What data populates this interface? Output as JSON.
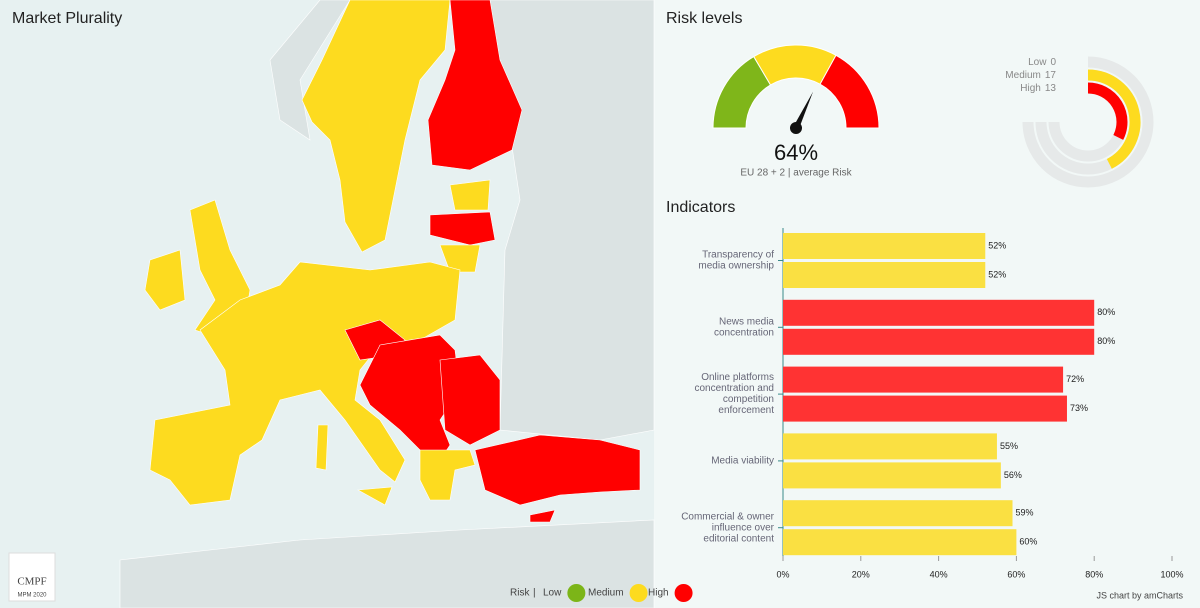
{
  "chart_data": [
    {
      "type": "map",
      "title": "Market Plurality",
      "legend_title": "Risk",
      "legend_separator": "|",
      "legend": [
        {
          "name": "Low",
          "color": "#7cb518"
        },
        {
          "name": "Medium",
          "color": "#fddb1f"
        },
        {
          "name": "High",
          "color": "#ff0000"
        }
      ],
      "logo": {
        "title": "CMPF",
        "subtitle": "MPM 2020"
      }
    },
    {
      "type": "gauge",
      "title": "Risk levels",
      "value": 64,
      "value_label": "64%",
      "subtitle": "EU 28 + 2 | average Risk",
      "ylim": [
        0,
        100
      ],
      "bands": [
        {
          "from": 0,
          "to": 33,
          "color": "#7fb61a"
        },
        {
          "from": 33,
          "to": 66,
          "color": "#fddb1f"
        },
        {
          "from": 66,
          "to": 100,
          "color": "#ff0000"
        }
      ]
    },
    {
      "type": "radial-bar",
      "categories": [
        "Low",
        "Medium",
        "High"
      ],
      "values": [
        0,
        17,
        13
      ],
      "colors": [
        "#7fb61a",
        "#fddb1f",
        "#ff0000"
      ],
      "xlim": [
        0,
        30
      ]
    },
    {
      "type": "hbar",
      "title": "Indicators",
      "categories": [
        [
          "Transparency of",
          "media ownership"
        ],
        [
          "News media",
          "concentration"
        ],
        [
          "Online platforms",
          "concentration and",
          "competition",
          "enforcement"
        ],
        [
          "Media viability"
        ],
        [
          "Commercial & owner",
          "influence over",
          "editorial content"
        ]
      ],
      "series": [
        {
          "values": [
            52,
            80,
            72,
            55,
            59
          ],
          "value_labels": [
            "52%",
            "80%",
            "72%",
            "55%",
            "59%"
          ],
          "colors": [
            "#fae042",
            "#ff3333",
            "#ff3333",
            "#fae042",
            "#fae042"
          ]
        },
        {
          "values": [
            52,
            80,
            73,
            56,
            60
          ],
          "value_labels": [
            "52%",
            "80%",
            "73%",
            "56%",
            "60%"
          ],
          "colors": [
            "#fae042",
            "#ff3333",
            "#ff3333",
            "#fae042",
            "#fae042"
          ]
        }
      ],
      "xlim": [
        0,
        100
      ],
      "xticks": [
        {
          "value": 0,
          "label": "0%"
        },
        {
          "value": 20,
          "label": "20%"
        },
        {
          "value": 40,
          "label": "40%"
        },
        {
          "value": 60,
          "label": "60%"
        },
        {
          "value": 80,
          "label": "80%"
        },
        {
          "value": 100,
          "label": "100%"
        }
      ],
      "credit": "JS chart by amCharts"
    }
  ]
}
